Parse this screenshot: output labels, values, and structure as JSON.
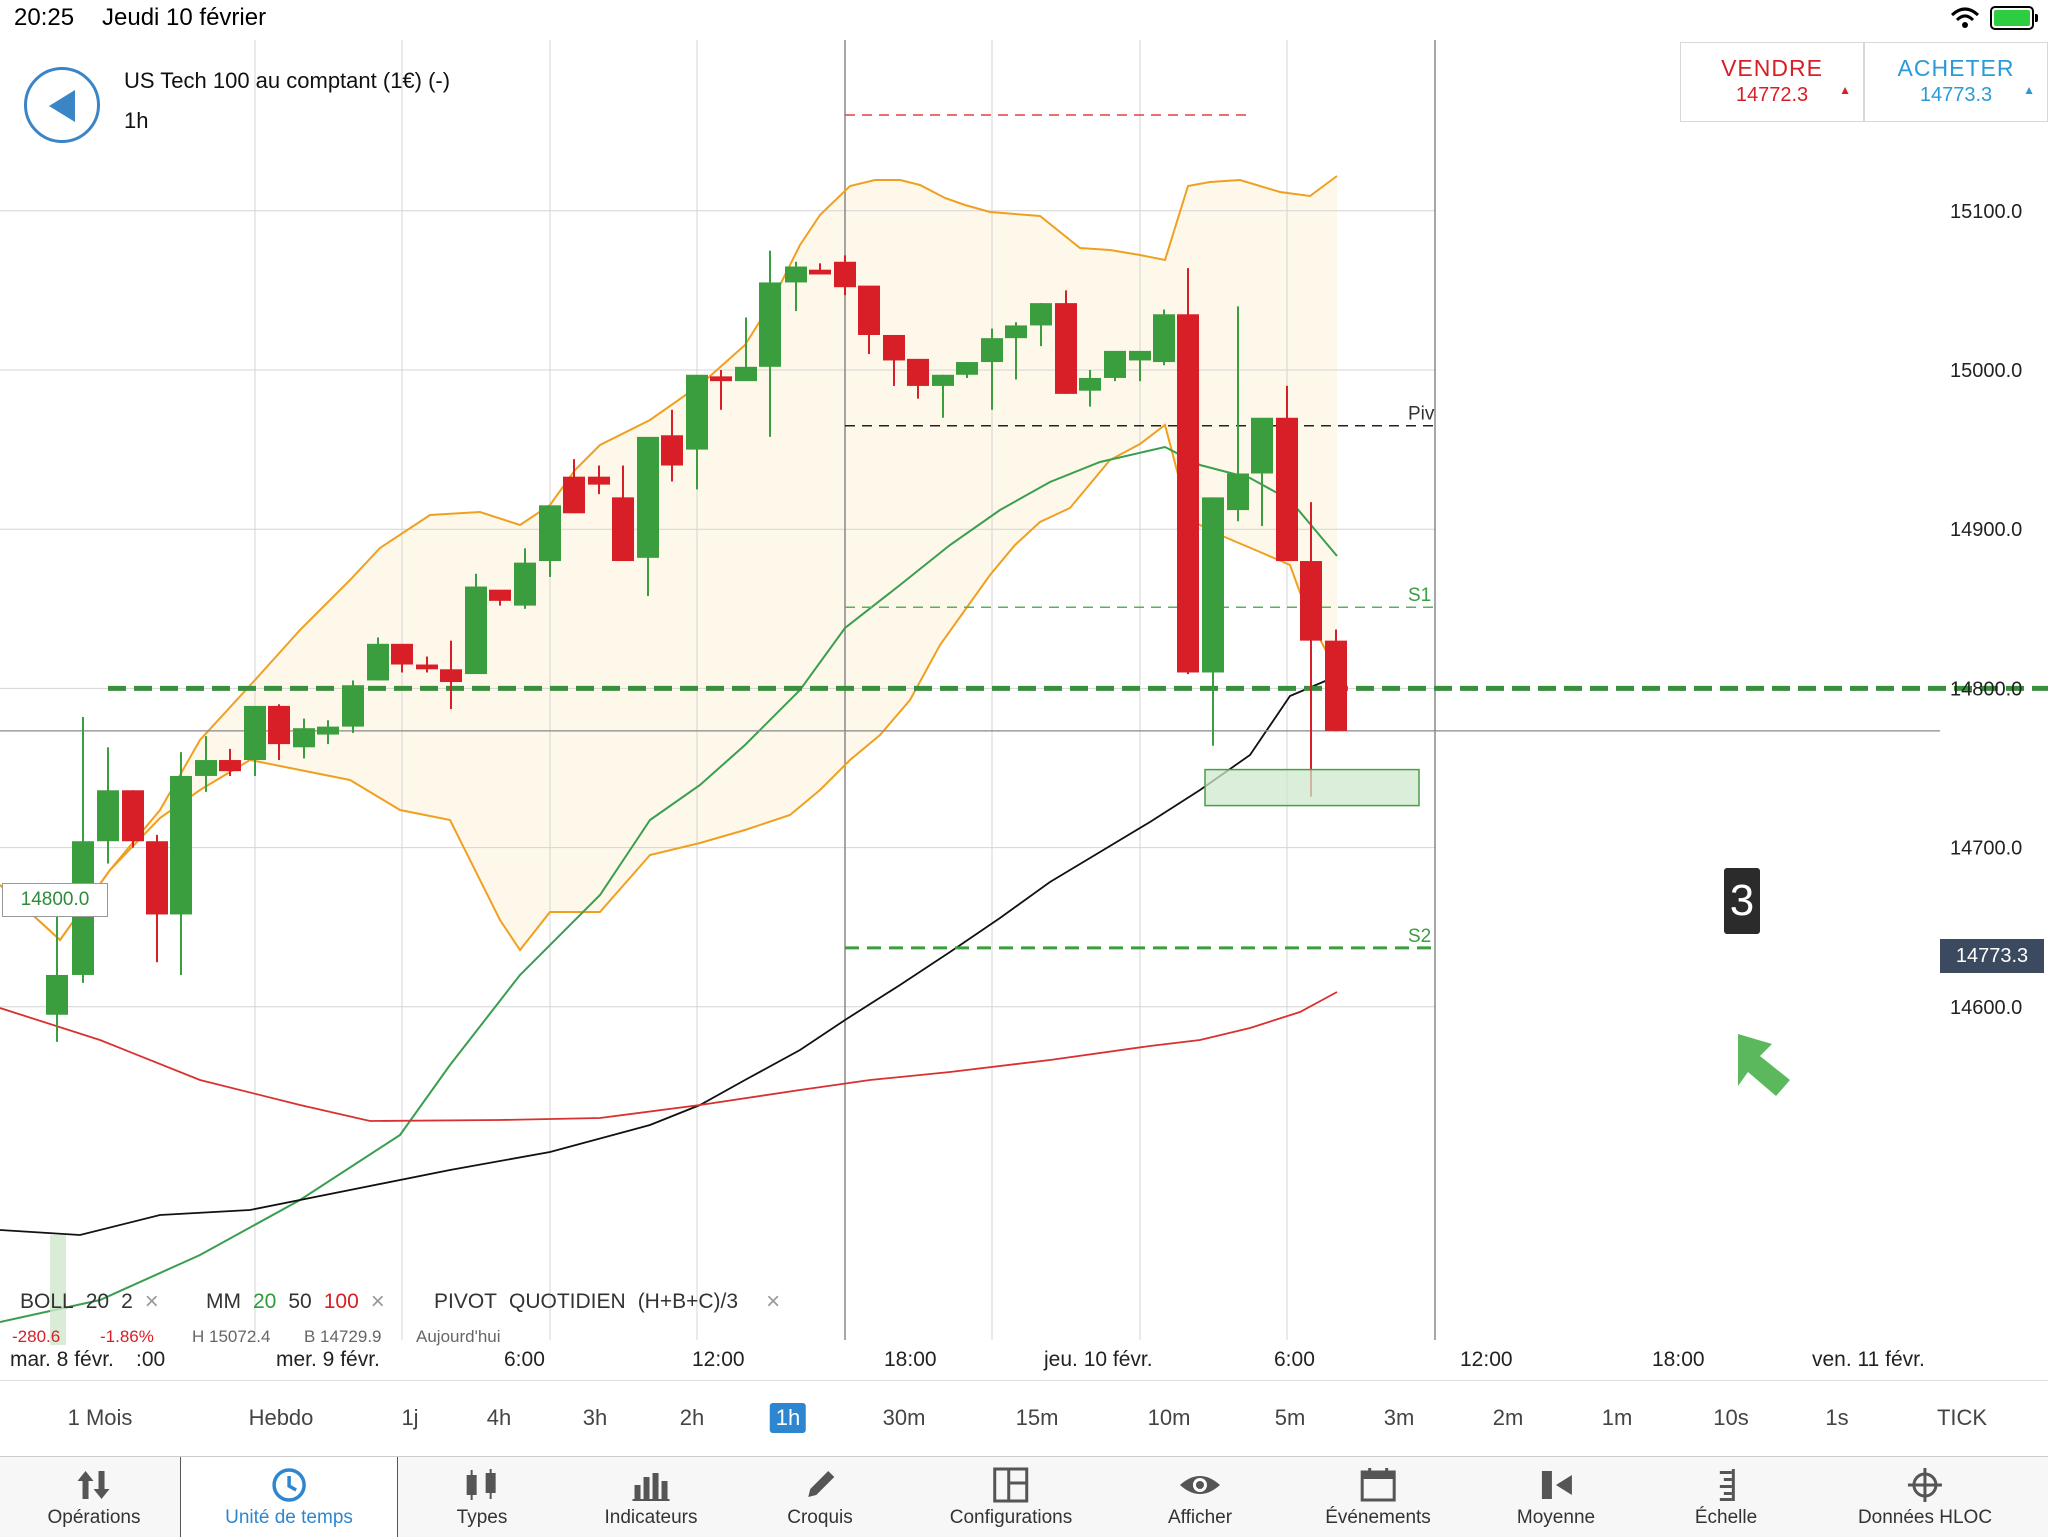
{
  "status": {
    "time": "20:25",
    "date": "Jeudi 10 février"
  },
  "instrument": {
    "name": "US Tech 100 au comptant (1€) (-)",
    "timeframe": "1h"
  },
  "trade": {
    "sell": {
      "label": "VENDRE",
      "price": "14772.3"
    },
    "buy": {
      "label": "ACHETER",
      "price": "14773.3"
    }
  },
  "chart": {
    "y_labels": [
      "15100.0",
      "15000.0",
      "14900.0",
      "14800.0",
      "14700.0",
      "14600.0"
    ],
    "x_labels": [
      "mar. 8 févr.",
      "mer. 9 févr.",
      "6:00",
      "12:00",
      "18:00",
      "jeu. 10 févr.",
      "6:00",
      "12:00",
      "18:00",
      "ven. 11 févr."
    ],
    "x_partial": ":00",
    "alert_price": "14800.0",
    "current_price": "14773.3",
    "pivot_labels": {
      "piv": "Piv",
      "s1": "S1",
      "s2": "S2"
    },
    "callout": "3"
  },
  "legend": {
    "boll": {
      "name": "BOLL",
      "p1": "20",
      "p2": "2"
    },
    "mm": {
      "name": "MM",
      "p1": "20",
      "p2": "50",
      "p3": "100"
    },
    "pivot": {
      "name": "PIVOT",
      "mode": "QUOTIDIEN",
      "formula": "(H+B+C)/3"
    },
    "close": "×",
    "sub": {
      "change": "-280.6",
      "pct": "-1.86%",
      "high": "H 15072.4",
      "low": "B 14729.9",
      "today": "Aujourd'hui"
    }
  },
  "timeframes": [
    "1 Mois",
    "Hebdo",
    "1j",
    "4h",
    "3h",
    "2h",
    "1h",
    "30m",
    "15m",
    "10m",
    "5m",
    "3m",
    "2m",
    "1m",
    "10s",
    "1s",
    "TICK"
  ],
  "active_timeframe": "1h",
  "tabs": [
    "Opérations",
    "Unité de temps",
    "Types",
    "Indicateurs",
    "Croquis",
    "Configurations",
    "Afficher",
    "Événements",
    "Moyenne",
    "Échelle",
    "Données HLOC"
  ],
  "active_tab": "Unité de temps",
  "colors": {
    "up": "#3a9e3f",
    "down": "#d81e26",
    "boll": "#f0a020",
    "ma20": "#3a9e4f",
    "ma50": "#111111",
    "ma100": "#d93030",
    "accent": "#2f86d0"
  }
}
